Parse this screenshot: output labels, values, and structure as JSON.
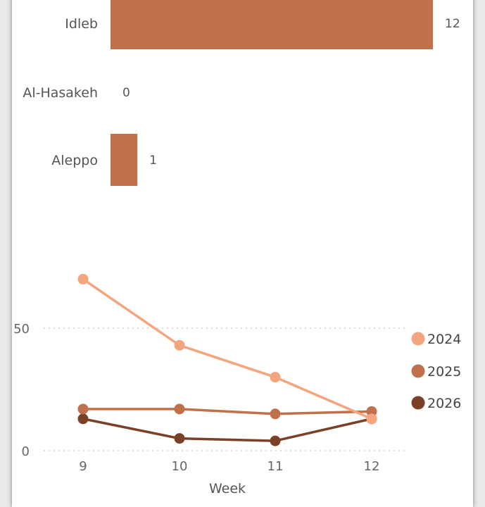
{
  "chart_data": [
    {
      "type": "bar",
      "orientation": "horizontal",
      "categories": [
        "Idleb",
        "Al-Hasakeh",
        "Aleppo"
      ],
      "values": [
        12,
        0,
        1
      ],
      "data_labels": [
        "12",
        "0",
        "1"
      ],
      "color": "#c0704a",
      "xlim": [
        0,
        12
      ]
    },
    {
      "type": "line",
      "x": [
        9,
        10,
        11,
        12
      ],
      "x_tick_labels": [
        "9",
        "10",
        "11",
        "12"
      ],
      "xlabel": "Week",
      "ylabel": "",
      "ylim": [
        0,
        50
      ],
      "y_tick_values": [
        0,
        50
      ],
      "y_tick_labels": [
        "0",
        "50"
      ],
      "grid": true,
      "legend_position": "right",
      "series": [
        {
          "name": "2024",
          "color": "#f5a57e",
          "values": [
            70,
            43,
            30,
            13
          ]
        },
        {
          "name": "2025",
          "color": "#c0704a",
          "values": [
            17,
            17,
            15,
            16
          ]
        },
        {
          "name": "2026",
          "color": "#7a4128",
          "values": [
            13,
            5,
            4,
            13
          ]
        }
      ]
    }
  ]
}
